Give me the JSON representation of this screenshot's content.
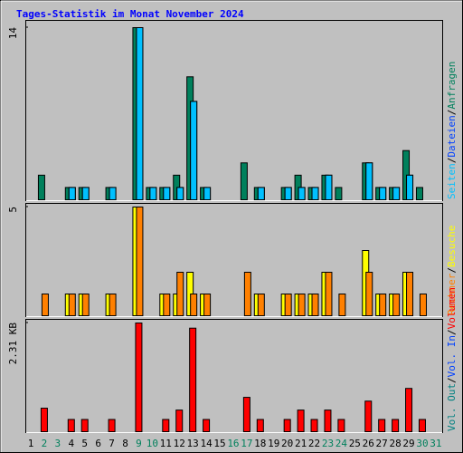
{
  "chart_data": [
    {
      "type": "bar",
      "title": "Tages-Statistik im Monat November 2024",
      "separator": "/",
      "categories": [
        "1",
        "2",
        "3",
        "4",
        "5",
        "6",
        "7",
        "8",
        "9",
        "10",
        "11",
        "12",
        "13",
        "14",
        "15",
        "16",
        "17",
        "18",
        "19",
        "20",
        "21",
        "22",
        "23",
        "24",
        "25",
        "26",
        "27",
        "28",
        "29",
        "30",
        "31"
      ],
      "category_colors": [
        "#000000",
        "#00805c",
        "#00805c",
        "#000000",
        "#000000",
        "#000000",
        "#000000",
        "#000000",
        "#00805c",
        "#00805c",
        "#000000",
        "#000000",
        "#000000",
        "#000000",
        "#000000",
        "#00805c",
        "#00805c",
        "#000000",
        "#000000",
        "#000000",
        "#000000",
        "#000000",
        "#00805c",
        "#00805c",
        "#000000",
        "#000000",
        "#000000",
        "#000000",
        "#000000",
        "#00805c",
        "#00805c"
      ],
      "series": [
        {
          "name": "Anfragen",
          "color": "#00805c",
          "values": [
            0,
            2,
            0,
            1,
            1,
            0,
            1,
            0,
            14,
            1,
            1,
            2,
            10,
            1,
            0,
            0,
            3,
            1,
            0,
            1,
            2,
            1,
            2,
            1,
            0,
            3,
            1,
            1,
            4,
            1,
            0
          ]
        },
        {
          "name": "Dateien",
          "color": "#0040ff",
          "values": [
            0,
            0,
            0,
            1,
            1,
            0,
            1,
            0,
            14,
            1,
            1,
            1,
            8,
            1,
            0,
            0,
            0,
            1,
            0,
            1,
            1,
            1,
            2,
            0,
            0,
            3,
            1,
            1,
            2,
            0,
            0
          ]
        },
        {
          "name": "Seiten",
          "color": "#00c0ff",
          "values": [
            0,
            0,
            0,
            1,
            1,
            0,
            1,
            0,
            14,
            1,
            1,
            1,
            8,
            1,
            0,
            0,
            0,
            1,
            0,
            1,
            1,
            1,
            2,
            0,
            0,
            3,
            1,
            1,
            2,
            0,
            0
          ]
        }
      ],
      "ylim": [
        0,
        14
      ],
      "yticks": [
        14
      ]
    },
    {
      "type": "bar",
      "separator": "/",
      "series": [
        {
          "name": "Besuche",
          "color": "#ffff00",
          "values": [
            0,
            0,
            0,
            1,
            1,
            0,
            1,
            0,
            5,
            0,
            1,
            1,
            2,
            1,
            0,
            0,
            0,
            1,
            0,
            1,
            1,
            1,
            2,
            0,
            0,
            3,
            1,
            1,
            2,
            0,
            0
          ]
        },
        {
          "name": "Rechner",
          "color": "#ff8000",
          "values": [
            0,
            1,
            0,
            1,
            1,
            0,
            1,
            0,
            5,
            0,
            1,
            2,
            1,
            1,
            0,
            0,
            2,
            1,
            0,
            1,
            1,
            1,
            2,
            1,
            0,
            2,
            1,
            1,
            2,
            1,
            0
          ]
        }
      ],
      "ylim": [
        0,
        5
      ],
      "yticks": [
        5
      ]
    },
    {
      "type": "bar",
      "separator": "/",
      "series": [
        {
          "name": "Volumen",
          "color": "#ff0000",
          "values": [
            0,
            0.5,
            0,
            0.26,
            0.26,
            0,
            0.26,
            0,
            2.31,
            0,
            0.26,
            0.46,
            2.2,
            0.26,
            0,
            0,
            0.73,
            0.26,
            0,
            0.26,
            0.46,
            0.26,
            0.46,
            0.26,
            0,
            0.65,
            0.26,
            0.26,
            0.92,
            0.26,
            0
          ]
        }
      ],
      "legend": [
        {
          "name": "Vol. In",
          "color": "#0040ff"
        },
        {
          "name": "Vol. Out",
          "color": "#008080"
        }
      ],
      "ylim": [
        0,
        2.31
      ],
      "yticks": [
        {
          "value": 2.31,
          "label": "2.31 KB"
        }
      ]
    }
  ]
}
